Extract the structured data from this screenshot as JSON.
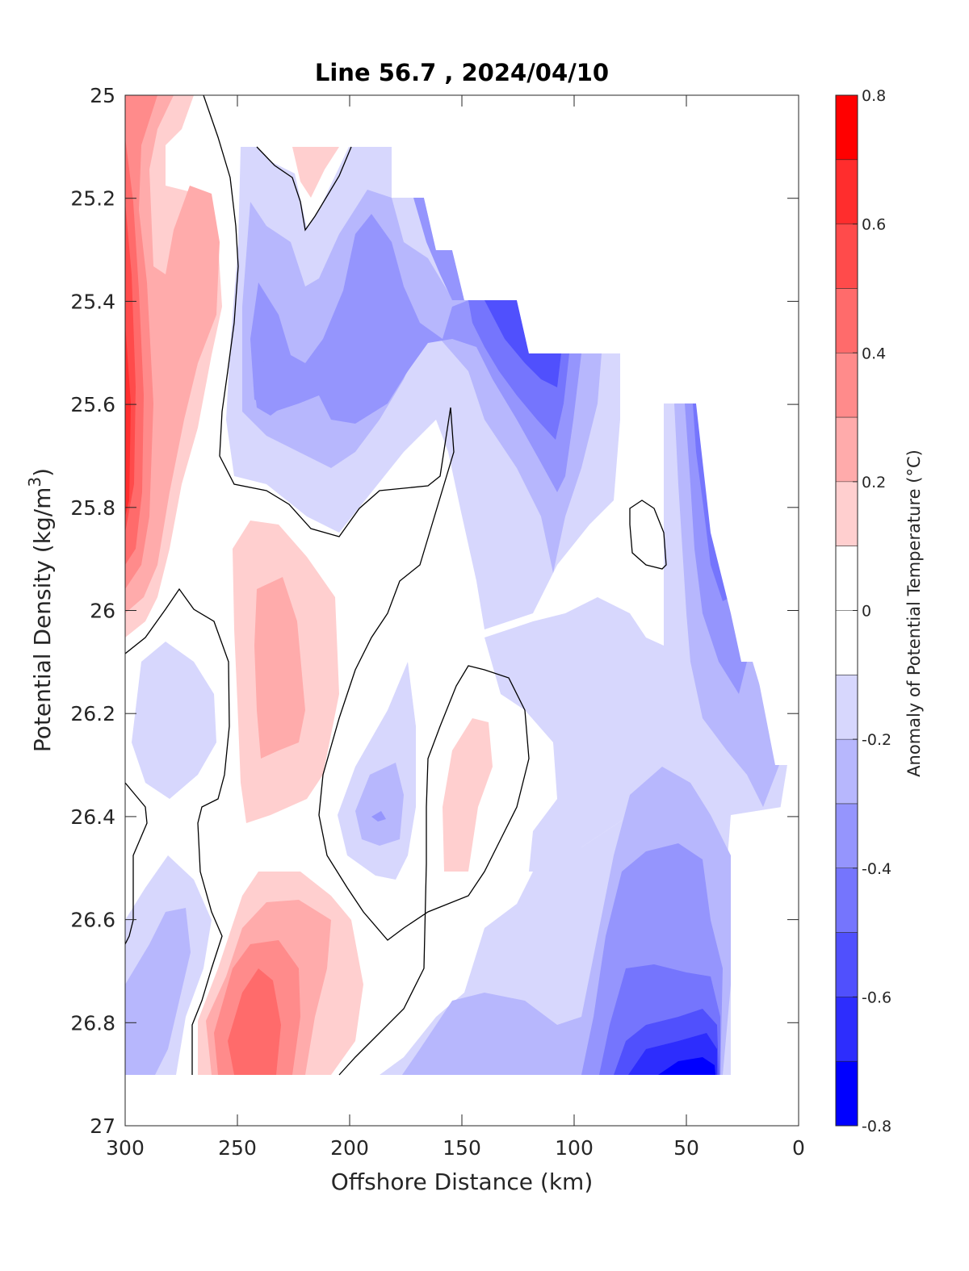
{
  "chart_data": {
    "type": "contour",
    "title": "Line 56.7 , 2024/04/10",
    "xlabel": "Offshore Distance (km)",
    "ylabel_main": "Potential Density (kg/m",
    "ylabel_sup": "3",
    "ylabel_close": ")",
    "xlim": [
      300,
      0
    ],
    "ylim": [
      25,
      27
    ],
    "x_reversed": true,
    "y_reversed": true,
    "x_ticks": [
      300,
      250,
      200,
      150,
      100,
      50,
      0
    ],
    "y_ticks": [
      "25",
      "25.2",
      "25.4",
      "25.6",
      "25.8",
      "26",
      "26.2",
      "26.4",
      "26.6",
      "26.8",
      "27"
    ],
    "colorbar": {
      "label": "Anomaly of Potential Temperature (°C)",
      "range": [
        -0.8,
        0.8
      ],
      "ticks": [
        "0.8",
        "0.6",
        "0.4",
        "0.2",
        "0",
        "-0.2",
        "-0.4",
        "-0.6",
        "-0.8"
      ],
      "colors": [
        "#ff0000",
        "#ff2d2d",
        "#ff4b4b",
        "#ff6b6b",
        "#ff8b8b",
        "#ffabab",
        "#ffcfcf",
        "#ffffff",
        "#ffffff",
        "#d7d7fd",
        "#b7b7fd",
        "#9595fd",
        "#7575fd",
        "#5050fd",
        "#2d2dfd",
        "#0000ff"
      ]
    },
    "grid": false
  }
}
